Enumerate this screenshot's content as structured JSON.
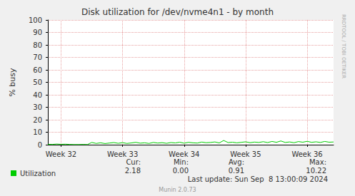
{
  "chart_data": {
    "type": "line",
    "title": "Disk utilization for /dev/nvme4n1 - by month",
    "y_label": "% busy",
    "categories": [
      null,
      null,
      null,
      "Week 32",
      null,
      null,
      null,
      null,
      null,
      null,
      null,
      null,
      null,
      null,
      null,
      null,
      null,
      "Week 33",
      null,
      null,
      null,
      null,
      null,
      null,
      null,
      null,
      null,
      null,
      null,
      null,
      null,
      "Week 34",
      null,
      null,
      null,
      null,
      null,
      null,
      null,
      null,
      null,
      null,
      null,
      null,
      null,
      "Week 35",
      null,
      null,
      null,
      null,
      null,
      null,
      null,
      null,
      null,
      null,
      null,
      null,
      null,
      "Week 36",
      null,
      null,
      null,
      null,
      null,
      null
    ],
    "series": [
      {
        "name": "Utilization",
        "color": "#00cc00",
        "values": [
          0.3,
          0.2,
          0.5,
          0.3,
          0.4,
          0.2,
          0.1,
          0.1,
          0.2,
          0.1,
          1.8,
          1.0,
          1.5,
          0.9,
          1.3,
          1.7,
          1.1,
          1.6,
          1.0,
          1.4,
          1.9,
          1.2,
          1.5,
          1.0,
          1.8,
          1.3,
          1.6,
          1.1,
          1.7,
          1.4,
          2.0,
          1.2,
          1.9,
          1.5,
          1.3,
          2.1,
          1.6,
          1.8,
          2.2,
          1.4,
          3.4,
          1.7,
          2.0,
          1.5,
          1.9,
          2.3,
          1.6,
          2.1,
          1.8,
          2.4,
          1.7,
          2.6,
          1.9,
          3.0,
          1.8,
          2.2,
          1.6,
          2.5,
          2.0,
          2.7,
          1.9,
          2.3,
          1.8,
          2.6,
          2.0,
          2.18
        ]
      }
    ],
    "ylim": [
      0,
      100
    ],
    "yticks": [
      0,
      10,
      20,
      30,
      40,
      50,
      60,
      70,
      80,
      90,
      100
    ],
    "grid": true,
    "summary": [
      {
        "label": "Cur:",
        "value": 2.18
      },
      {
        "label": "Min:",
        "value": {
          "value": 0,
          "label": "0.00"
        }
      },
      {
        "label": "Avg:",
        "value": 0.91
      },
      {
        "label": "Max:",
        "value": 10.22
      }
    ],
    "last_update": "Last update: Sun Sep  8 13:00:09 2024",
    "footer": "Munin 2.0.73",
    "side_text": "RRDTOOL / TOBI OETIKER"
  }
}
